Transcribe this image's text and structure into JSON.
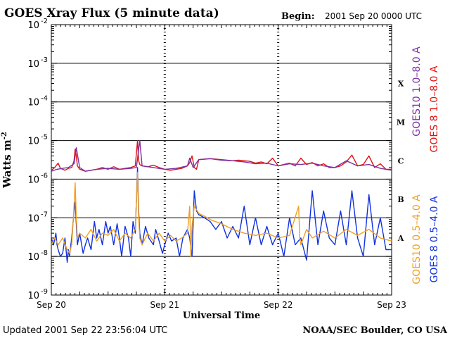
{
  "chart_data": {
    "type": "line",
    "title": "GOES Xray Flux (5 minute data)",
    "begin_label": "Begin:",
    "begin_value": "2001 Sep 20 0000 UTC",
    "xlabel": "Universal Time",
    "ylabel": "Watts m",
    "ylabel_sup": "-2",
    "y_scale": "log",
    "ylim": [
      1e-09,
      0.01
    ],
    "y_ticks": [
      {
        "mantissa": "10",
        "exp": "-2",
        "value": 0.01
      },
      {
        "mantissa": "10",
        "exp": "-3",
        "value": 0.001
      },
      {
        "mantissa": "10",
        "exp": "-4",
        "value": 0.0001
      },
      {
        "mantissa": "10",
        "exp": "-5",
        "value": 1e-05
      },
      {
        "mantissa": "10",
        "exp": "-6",
        "value": 1e-06
      },
      {
        "mantissa": "10",
        "exp": "-7",
        "value": 1e-07
      },
      {
        "mantissa": "10",
        "exp": "-8",
        "value": 1e-08
      },
      {
        "mantissa": "10",
        "exp": "-9",
        "value": 1e-09
      }
    ],
    "x_ticks": [
      "Sep 20",
      "Sep 21",
      "Sep 22",
      "Sep 23"
    ],
    "xlim_days": [
      0,
      3
    ],
    "flare_classes": [
      {
        "label": "X",
        "value": 0.0003
      },
      {
        "label": "M",
        "value": 3e-05
      },
      {
        "label": "C",
        "value": 3e-06
      },
      {
        "label": "B",
        "value": 3e-07
      },
      {
        "label": "A",
        "value": 3e-08
      }
    ],
    "grid_lines": [
      0.001,
      0.0001,
      1e-05,
      1e-06,
      1e-07,
      1e-08
    ],
    "legend": {
      "g10_long": "GOES10 1.0–8.0 A",
      "g8_long": "GOES 8 1.0–8.0 A",
      "g10_short": "GOES10 0.5–4.0 A",
      "g8_short": "GOES 8 0.5–4.0 A"
    },
    "colors": {
      "g10_long": "#7b2fa6",
      "g8_long": "#e01010",
      "g10_short": "#f0a020",
      "g8_short": "#1030e0"
    },
    "series": [
      {
        "name": "GOES10 1.0–8.0 A",
        "color": "#7b2fa6",
        "x": [
          0,
          0.05,
          0.1,
          0.15,
          0.2,
          0.22,
          0.25,
          0.3,
          0.4,
          0.5,
          0.6,
          0.7,
          0.75,
          0.78,
          0.8,
          0.9,
          1.0,
          1.1,
          1.2,
          1.22,
          1.25,
          1.3,
          1.4,
          1.5,
          1.6,
          1.7,
          1.8,
          1.9,
          2.0,
          2.1,
          2.2,
          2.3,
          2.4,
          2.5,
          2.6,
          2.7,
          2.8,
          2.9,
          3.0
        ],
        "y": [
          1.6e-06,
          1.8e-06,
          1.9e-06,
          2e-06,
          2.5e-06,
          6.5e-06,
          2e-06,
          1.6e-06,
          1.8e-06,
          1.9e-06,
          1.8e-06,
          1.9e-06,
          2e-06,
          1e-05,
          2.2e-06,
          2e-06,
          1.8e-06,
          1.9e-06,
          2.2e-06,
          3.5e-06,
          2e-06,
          3.2e-06,
          3.4e-06,
          3.1e-06,
          3e-06,
          2.8e-06,
          2.5e-06,
          2.6e-06,
          2.2e-06,
          2.5e-06,
          2.4e-06,
          2.6e-06,
          2.2e-06,
          2e-06,
          3e-06,
          2.2e-06,
          2.4e-06,
          1.9e-06,
          1.7e-06
        ]
      },
      {
        "name": "GOES 8 1.0–8.0 A",
        "color": "#e01010",
        "x": [
          0,
          0.03,
          0.06,
          0.08,
          0.1,
          0.12,
          0.15,
          0.18,
          0.2,
          0.21,
          0.22,
          0.23,
          0.25,
          0.3,
          0.35,
          0.4,
          0.45,
          0.5,
          0.55,
          0.6,
          0.65,
          0.7,
          0.74,
          0.76,
          0.77,
          0.78,
          0.8,
          0.85,
          0.9,
          0.95,
          1.0,
          1.05,
          1.1,
          1.15,
          1.2,
          1.22,
          1.24,
          1.26,
          1.28,
          1.3,
          1.35,
          1.4,
          1.45,
          1.5,
          1.55,
          1.6,
          1.65,
          1.7,
          1.75,
          1.8,
          1.85,
          1.9,
          1.95,
          2.0,
          2.05,
          2.1,
          2.15,
          2.2,
          2.25,
          2.3,
          2.35,
          2.4,
          2.45,
          2.5,
          2.55,
          2.6,
          2.65,
          2.7,
          2.75,
          2.8,
          2.85,
          2.9,
          2.95,
          3.0
        ],
        "y": [
          1.7e-06,
          2e-06,
          2.6e-06,
          1.9e-06,
          1.8e-06,
          1.7e-06,
          1.9e-06,
          2e-06,
          3e-06,
          6e-06,
          4e-06,
          2.2e-06,
          1.8e-06,
          1.6e-06,
          1.7e-06,
          1.8e-06,
          2e-06,
          1.8e-06,
          2.1e-06,
          1.8e-06,
          1.9e-06,
          2e-06,
          2.2e-06,
          1e-05,
          3e-06,
          2.4e-06,
          2.2e-06,
          2.1e-06,
          2.3e-06,
          2e-06,
          1.8e-06,
          1.7e-06,
          1.8e-06,
          1.9e-06,
          2.2e-06,
          2.7e-06,
          4e-06,
          2e-06,
          1.8e-06,
          3.2e-06,
          3.3e-06,
          3.4e-06,
          3.3e-06,
          3.2e-06,
          3.1e-06,
          3e-06,
          3.1e-06,
          3e-06,
          2.9e-06,
          2.6e-06,
          2.8e-06,
          2.5e-06,
          3.5e-06,
          2.2e-06,
          2.4e-06,
          2.6e-06,
          2.2e-06,
          3.5e-06,
          2.4e-06,
          2.7e-06,
          2.2e-06,
          2.5e-06,
          2e-06,
          2e-06,
          2.2e-06,
          2.8e-06,
          4.2e-06,
          2.2e-06,
          2.4e-06,
          4e-06,
          2e-06,
          2.5e-06,
          1.8e-06,
          1.8e-06
        ]
      },
      {
        "name": "GOES10 0.5–4.0 A",
        "color": "#f0a020",
        "x": [
          0,
          0.03,
          0.06,
          0.1,
          0.14,
          0.16,
          0.18,
          0.2,
          0.21,
          0.22,
          0.23,
          0.25,
          0.3,
          0.35,
          0.4,
          0.45,
          0.5,
          0.55,
          0.6,
          0.65,
          0.7,
          0.74,
          0.76,
          0.77,
          0.78,
          0.8,
          0.85,
          0.9,
          0.95,
          1.0,
          1.05,
          1.1,
          1.15,
          1.2,
          1.22,
          1.23,
          1.24,
          1.26,
          1.3,
          1.35,
          1.4,
          1.5,
          1.6,
          1.7,
          1.8,
          1.9,
          2.0,
          2.1,
          2.18,
          2.19,
          2.2,
          2.25,
          2.3,
          2.4,
          2.5,
          2.6,
          2.7,
          2.8,
          2.9,
          3.0
        ],
        "y": [
          2e-08,
          3e-08,
          2e-08,
          3e-08,
          1.5e-08,
          1.2e-08,
          2e-08,
          2e-07,
          8e-07,
          1e-07,
          3e-08,
          4e-08,
          3e-08,
          5e-08,
          2.5e-08,
          4e-08,
          3.5e-08,
          5e-08,
          2.5e-08,
          4e-08,
          3e-08,
          5e-08,
          1.5e-06,
          1e-07,
          3e-08,
          2e-08,
          4e-08,
          2.5e-08,
          4e-08,
          2.5e-08,
          3.5e-08,
          2.5e-08,
          3e-08,
          4e-08,
          2e-07,
          1e-08,
          6e-08,
          2e-07,
          1.3e-07,
          1.1e-07,
          9e-08,
          7e-08,
          5e-08,
          4e-08,
          3.5e-08,
          4e-08,
          3e-08,
          3.5e-08,
          2e-07,
          3e-08,
          2e-08,
          5e-08,
          3e-08,
          4.5e-08,
          3e-08,
          5e-08,
          3.5e-08,
          5e-08,
          3e-08,
          2.5e-08
        ]
      },
      {
        "name": "GOES 8 0.5–4.0 A",
        "color": "#1030e0",
        "x": [
          0,
          0.02,
          0.04,
          0.05,
          0.06,
          0.08,
          0.1,
          0.12,
          0.14,
          0.15,
          0.16,
          0.18,
          0.2,
          0.21,
          0.22,
          0.23,
          0.25,
          0.28,
          0.3,
          0.32,
          0.35,
          0.38,
          0.4,
          0.42,
          0.45,
          0.48,
          0.5,
          0.52,
          0.55,
          0.58,
          0.6,
          0.62,
          0.65,
          0.68,
          0.7,
          0.72,
          0.74,
          0.76,
          0.77,
          0.78,
          0.8,
          0.83,
          0.86,
          0.9,
          0.92,
          0.95,
          0.98,
          1.0,
          1.03,
          1.06,
          1.1,
          1.13,
          1.16,
          1.2,
          1.22,
          1.24,
          1.26,
          1.28,
          1.3,
          1.35,
          1.4,
          1.45,
          1.5,
          1.55,
          1.6,
          1.65,
          1.7,
          1.75,
          1.8,
          1.85,
          1.9,
          1.95,
          2.0,
          2.05,
          2.1,
          2.15,
          2.2,
          2.25,
          2.3,
          2.35,
          2.4,
          2.45,
          2.5,
          2.55,
          2.6,
          2.65,
          2.7,
          2.75,
          2.8,
          2.85,
          2.9,
          2.95,
          3.0
        ],
        "y": [
          3e-08,
          2e-08,
          4e-08,
          2e-08,
          1.5e-08,
          1e-08,
          1.2e-08,
          3e-08,
          7e-09,
          1.5e-08,
          1e-08,
          3e-08,
          1.5e-07,
          2.5e-07,
          7e-08,
          2e-08,
          4e-08,
          1.2e-08,
          2e-08,
          3e-08,
          1.5e-08,
          8e-08,
          3e-08,
          5e-08,
          2e-08,
          8e-08,
          4e-08,
          6e-08,
          2e-08,
          7e-08,
          3e-08,
          1e-08,
          6e-08,
          3e-08,
          1e-08,
          8e-08,
          4e-08,
          2e-06,
          1.5e-07,
          4e-08,
          2e-08,
          6e-08,
          3e-08,
          2e-08,
          5e-08,
          2.5e-08,
          1.2e-08,
          2e-08,
          4e-08,
          2.5e-08,
          3e-08,
          1e-08,
          3e-08,
          5e-08,
          3e-08,
          1e-08,
          5e-07,
          1.5e-07,
          1.2e-07,
          1e-07,
          8e-08,
          5e-08,
          8e-08,
          3e-08,
          6e-08,
          3e-08,
          2e-07,
          2e-08,
          1e-07,
          2e-08,
          6e-08,
          2e-08,
          4e-08,
          1e-08,
          1e-07,
          2e-08,
          3e-08,
          8e-09,
          5e-07,
          2e-08,
          1.5e-07,
          3e-08,
          2e-08,
          1.5e-07,
          2e-08,
          5e-07,
          3e-08,
          1e-08,
          4e-07,
          2e-08,
          1e-07,
          1.5e-08,
          1.5e-08
        ]
      }
    ]
  },
  "footer": {
    "updated": "Updated 2001 Sep 22 23:56:04 UTC",
    "source": "NOAA/SEC Boulder, CO USA"
  }
}
